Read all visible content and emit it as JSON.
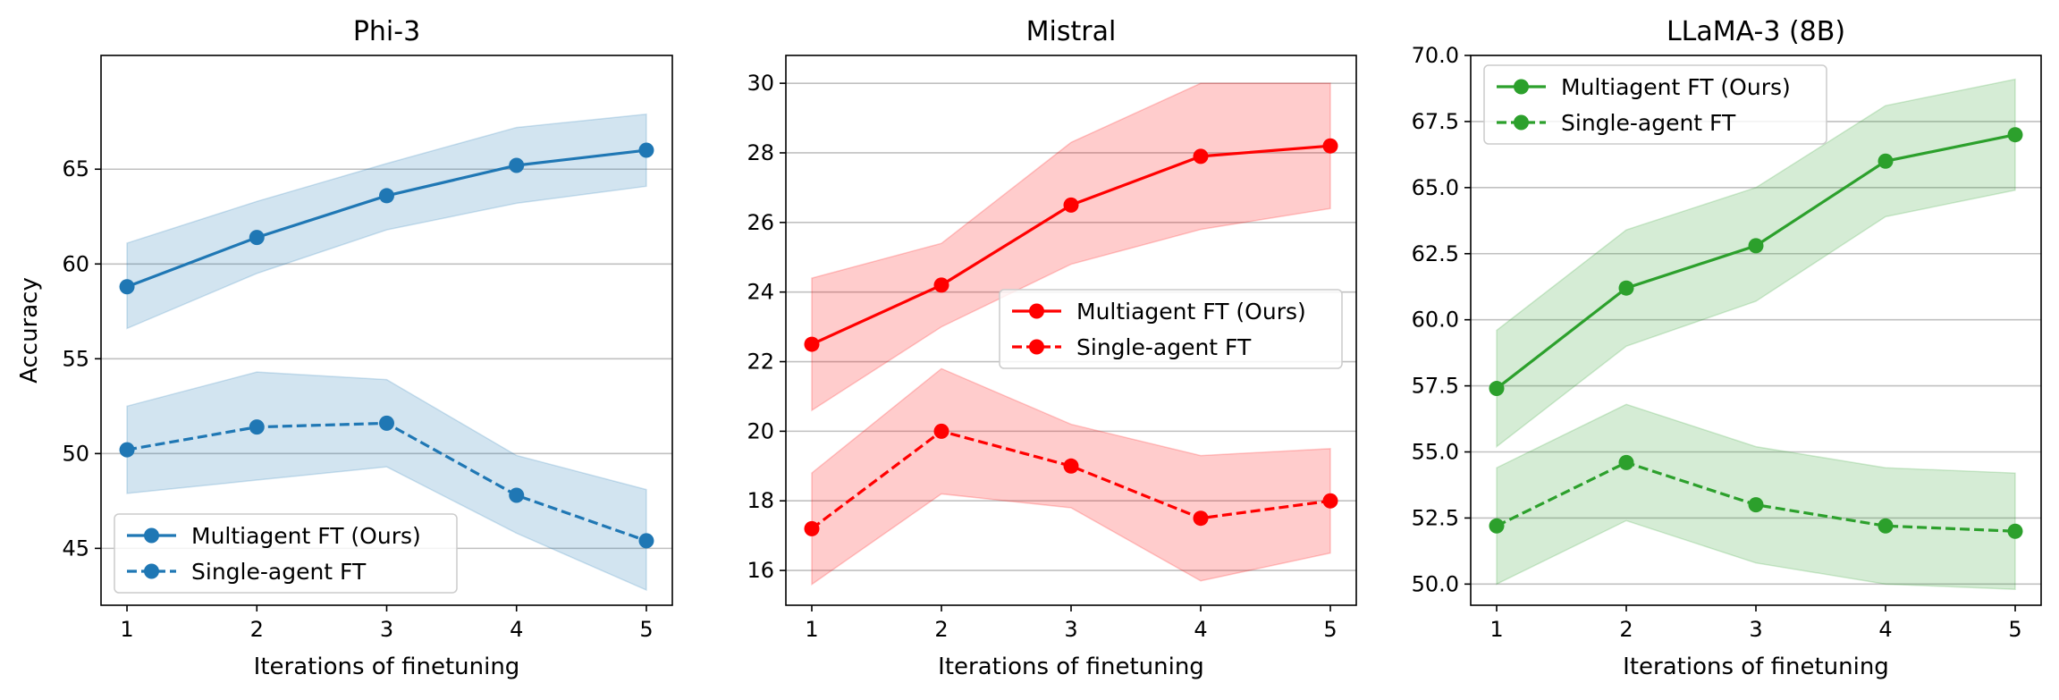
{
  "chart_data": [
    {
      "type": "line",
      "title": "Phi-3",
      "xlabel": "Iterations of finetuning",
      "ylabel": "Accuracy",
      "xlim": [
        0.8,
        5.2
      ],
      "ylim": [
        42,
        71
      ],
      "xticks": [
        1,
        2,
        3,
        4,
        5
      ],
      "yticks": [
        45,
        50,
        55,
        60,
        65
      ],
      "ytick_labels": [
        "45",
        "50",
        "55",
        "60",
        "65"
      ],
      "grid": "horizontal",
      "legend_position": "lower-left",
      "color": "#1f77b4",
      "series": [
        {
          "name": "Multiagent FT (Ours)",
          "style": "solid",
          "x": [
            1,
            2,
            3,
            4,
            5
          ],
          "values": [
            58.8,
            61.4,
            63.6,
            65.2,
            66.0
          ],
          "lower": [
            56.6,
            59.5,
            61.8,
            63.2,
            64.1
          ],
          "upper": [
            61.1,
            63.3,
            65.3,
            67.2,
            67.9
          ]
        },
        {
          "name": "Single-agent FT",
          "style": "dashed",
          "x": [
            1,
            2,
            3,
            4,
            5
          ],
          "values": [
            50.2,
            51.4,
            51.6,
            47.8,
            45.4
          ],
          "lower": [
            47.9,
            48.6,
            49.3,
            45.8,
            42.8
          ],
          "upper": [
            52.5,
            54.3,
            53.9,
            49.9,
            48.1
          ]
        }
      ]
    },
    {
      "type": "line",
      "title": "Mistral",
      "xlabel": "Iterations of finetuning",
      "ylabel": "",
      "xlim": [
        0.8,
        5.2
      ],
      "ylim": [
        15,
        30.8
      ],
      "xticks": [
        1,
        2,
        3,
        4,
        5
      ],
      "yticks": [
        16,
        18,
        20,
        22,
        24,
        26,
        28,
        30
      ],
      "ytick_labels": [
        "16",
        "18",
        "20",
        "22",
        "24",
        "26",
        "28",
        "30"
      ],
      "grid": "horizontal",
      "legend_position": "center-right",
      "color": "#ff0000",
      "series": [
        {
          "name": "Multiagent FT (Ours)",
          "style": "solid",
          "x": [
            1,
            2,
            3,
            4,
            5
          ],
          "values": [
            22.5,
            24.2,
            26.5,
            27.9,
            28.2
          ],
          "lower": [
            20.6,
            23.0,
            24.8,
            25.8,
            26.4
          ],
          "upper": [
            24.4,
            25.4,
            28.3,
            30.0,
            30.0
          ]
        },
        {
          "name": "Single-agent FT",
          "style": "dashed",
          "x": [
            1,
            2,
            3,
            4,
            5
          ],
          "values": [
            17.2,
            20.0,
            19.0,
            17.5,
            18.0
          ],
          "lower": [
            15.6,
            18.2,
            17.8,
            15.7,
            16.5
          ],
          "upper": [
            18.8,
            21.8,
            20.2,
            19.3,
            19.5
          ]
        }
      ]
    },
    {
      "type": "line",
      "title": "LLaMA-3 (8B)",
      "xlabel": "Iterations of finetuning",
      "ylabel": "",
      "xlim": [
        0.8,
        5.2
      ],
      "ylim": [
        49.2,
        70.0
      ],
      "xticks": [
        1,
        2,
        3,
        4,
        5
      ],
      "yticks": [
        50,
        52.5,
        55,
        57.5,
        60,
        62.5,
        65,
        67.5,
        70
      ],
      "ytick_labels": [
        "50.0",
        "52.5",
        "55.0",
        "57.5",
        "60.0",
        "62.5",
        "65.0",
        "67.5",
        "70.0"
      ],
      "grid": "horizontal",
      "legend_position": "upper-left",
      "color": "#2ca02c",
      "series": [
        {
          "name": "Multiagent FT (Ours)",
          "style": "solid",
          "x": [
            1,
            2,
            3,
            4,
            5
          ],
          "values": [
            57.4,
            61.2,
            62.8,
            66.0,
            67.0
          ],
          "lower": [
            55.2,
            59.0,
            60.7,
            63.9,
            64.9
          ],
          "upper": [
            59.6,
            63.4,
            65.0,
            68.1,
            69.1
          ]
        },
        {
          "name": "Single-agent FT",
          "style": "dashed",
          "x": [
            1,
            2,
            3,
            4,
            5
          ],
          "values": [
            52.2,
            54.6,
            53.0,
            52.2,
            52.0
          ],
          "lower": [
            50.0,
            52.4,
            50.8,
            50.0,
            49.8
          ],
          "upper": [
            54.4,
            56.8,
            55.2,
            54.4,
            54.2
          ]
        }
      ]
    }
  ]
}
